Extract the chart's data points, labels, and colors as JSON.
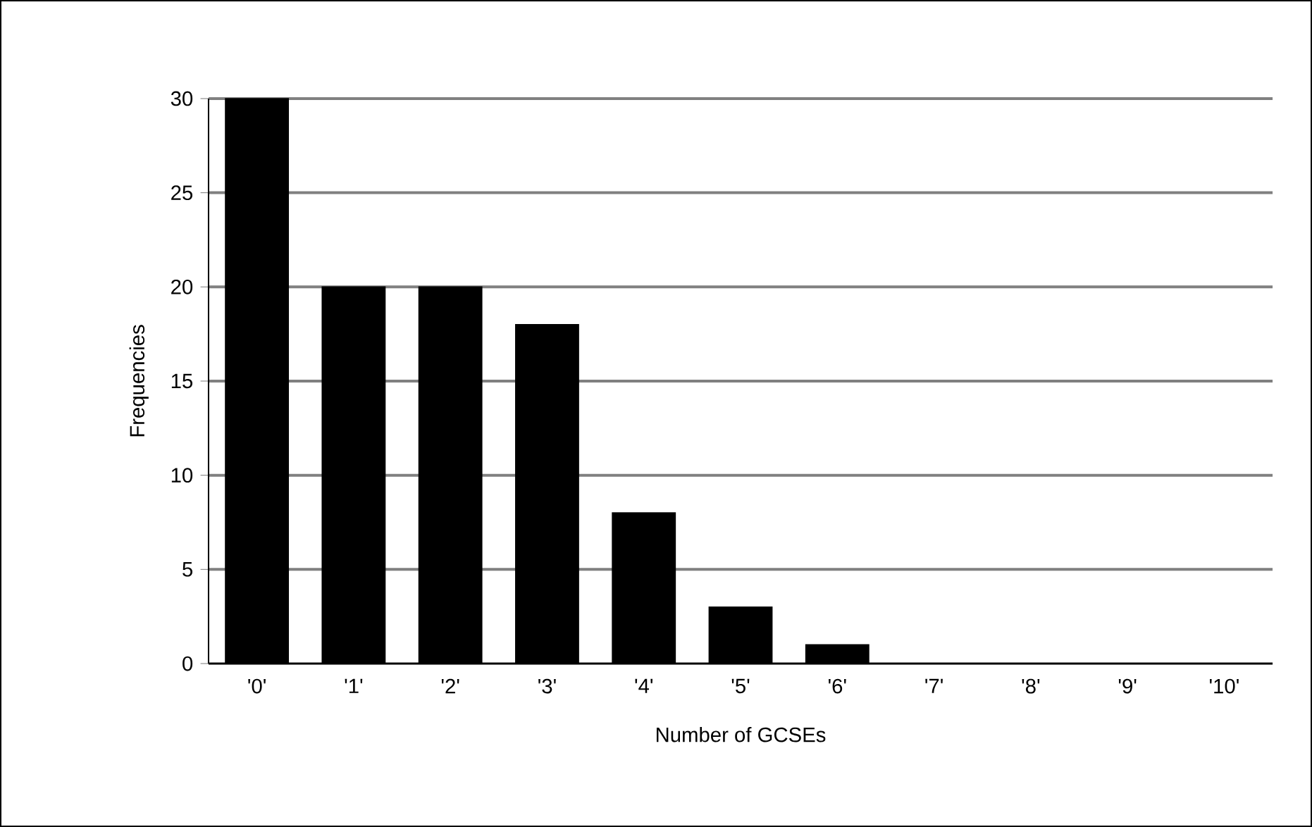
{
  "chart_data": {
    "type": "bar",
    "xlabel": "Number of GCSEs",
    "ylabel": "Frequencies",
    "categories": [
      "'0'",
      "'1'",
      "'2'",
      "'3'",
      "'4'",
      "'5'",
      "'6'",
      "'7'",
      "'8'",
      "'9'",
      "'10'"
    ],
    "values": [
      30,
      20,
      20,
      18,
      8,
      3,
      1,
      0,
      0,
      0,
      0
    ],
    "color": "#000000",
    "ylim": [
      0,
      30
    ],
    "yticks": [
      0,
      5,
      10,
      15,
      20,
      25,
      30
    ],
    "grid": "y"
  }
}
